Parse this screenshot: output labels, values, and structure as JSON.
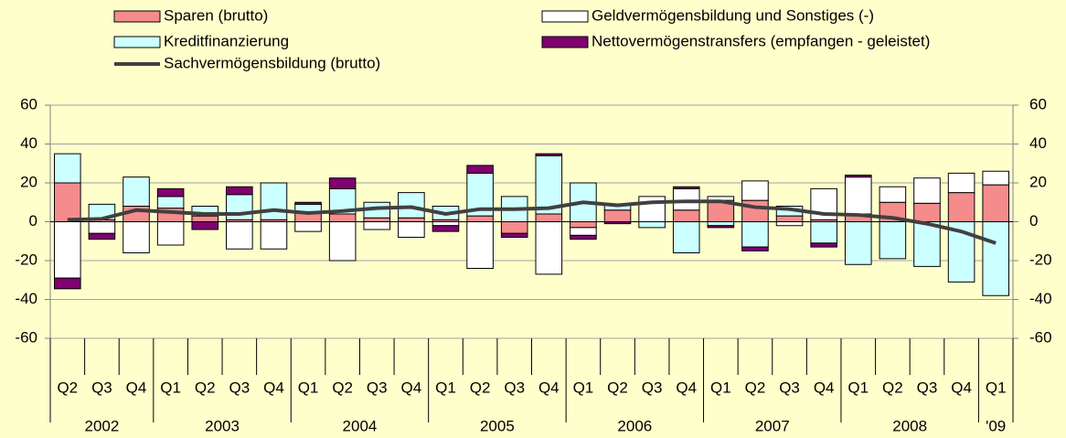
{
  "chart_data": {
    "type": "stacked-bar-line",
    "groups": [
      {
        "label": "2002",
        "categories": [
          "Q2",
          "Q3",
          "Q4"
        ]
      },
      {
        "label": "2003",
        "categories": [
          "Q1",
          "Q2",
          "Q3",
          "Q4"
        ]
      },
      {
        "label": "2004",
        "categories": [
          "Q1",
          "Q2",
          "Q3",
          "Q4"
        ]
      },
      {
        "label": "2005",
        "categories": [
          "Q1",
          "Q2",
          "Q3",
          "Q4"
        ]
      },
      {
        "label": "2006",
        "categories": [
          "Q1",
          "Q2",
          "Q3",
          "Q4"
        ]
      },
      {
        "label": "2007",
        "categories": [
          "Q1",
          "Q2",
          "Q3",
          "Q4"
        ]
      },
      {
        "label": "2008",
        "categories": [
          "Q1",
          "Q2",
          "Q3",
          "Q4"
        ]
      },
      {
        "label": "'09",
        "categories": [
          "Q1"
        ]
      }
    ],
    "series": [
      {
        "name": "Sparen (brutto)",
        "color": "#f58c8c",
        "kind": "bar",
        "values": [
          20,
          1,
          8,
          7,
          3,
          1,
          1,
          5,
          4,
          2,
          2,
          1,
          3,
          -6,
          4,
          -3,
          6,
          0,
          6,
          11,
          11,
          3,
          1,
          4,
          10,
          9.5,
          15,
          19
        ]
      },
      {
        "name": "Geldvermögensbildung und Sonstiges (-)",
        "color": "#ffffff",
        "kind": "bar",
        "values": [
          -29,
          -6,
          -16,
          -12,
          0,
          -14,
          -14,
          -5,
          -20,
          -4,
          -8,
          -2,
          -24,
          0,
          -27,
          -4,
          0,
          13,
          11,
          2,
          10,
          -2,
          16,
          19,
          8,
          13,
          10,
          7
        ]
      },
      {
        "name": "Kreditfinanzierung",
        "color": "#ccffff",
        "kind": "bar",
        "values": [
          15,
          8,
          15,
          6,
          5,
          13,
          19,
          4,
          13,
          8,
          13,
          7,
          22,
          13,
          30,
          20,
          3,
          -3,
          -16,
          -2,
          -13,
          5,
          -11,
          -22,
          -19,
          -23,
          -31,
          -38
        ]
      },
      {
        "name": "Nettovermögenstransfers (empfangen - geleistet)",
        "color": "#800070",
        "kind": "bar",
        "values": [
          -5.5,
          -3,
          0,
          4,
          -4,
          4,
          0,
          1,
          5.5,
          0,
          0,
          -3,
          4,
          -2,
          1,
          -2,
          -1,
          0,
          1,
          -1,
          -2,
          0,
          -2,
          1,
          0,
          0,
          0,
          0
        ]
      },
      {
        "name": "Sachvermögensbildung (brutto)",
        "color": "#404040",
        "kind": "line",
        "values": [
          1,
          1.5,
          6,
          5,
          4,
          4,
          6,
          4.5,
          5.5,
          7,
          7.5,
          4,
          6.5,
          6.5,
          7,
          10,
          8.5,
          10,
          10.5,
          10.5,
          7.5,
          6.5,
          4,
          3.5,
          2,
          -1,
          -5,
          -11
        ]
      }
    ],
    "ylim": [
      -60,
      60
    ],
    "yticks": [
      -60,
      -40,
      -20,
      0,
      20,
      40,
      60
    ],
    "y2lim": [
      -60,
      60
    ],
    "y2ticks": [
      -60,
      -40,
      -20,
      0,
      20,
      40,
      60
    ],
    "grid": true
  }
}
